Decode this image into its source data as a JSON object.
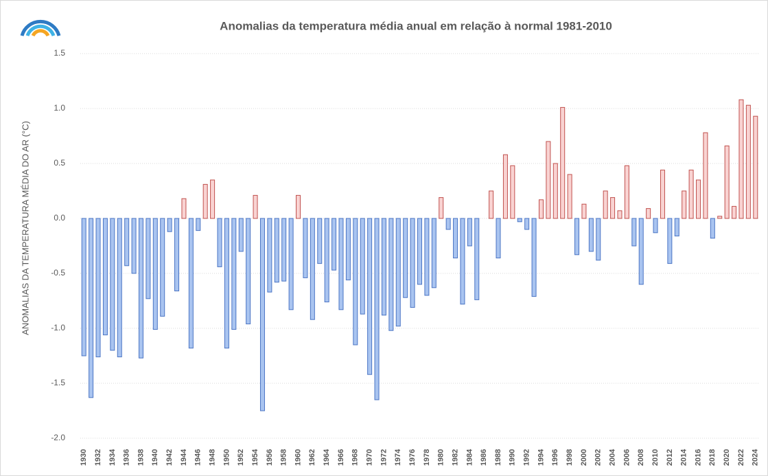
{
  "chart_data": {
    "type": "bar",
    "title": "Anomalias  da temperatura  média anual  em relação à normal  1981-2010",
    "y_label": "ANOMALIAS DA TEMPERATURA MÉDIA DO AR (°C)",
    "categories": [
      "1930",
      null,
      "1932",
      null,
      "1934",
      null,
      "1936",
      null,
      "1938",
      null,
      "1940",
      null,
      "1942",
      null,
      "1944",
      null,
      "1946",
      null,
      "1948",
      null,
      "1950",
      null,
      "1952",
      null,
      "1954",
      null,
      "1956",
      null,
      "1958",
      null,
      "1960",
      null,
      "1962",
      null,
      "1964",
      null,
      "1966",
      null,
      "1968",
      null,
      "1970",
      null,
      "1972",
      null,
      "1974",
      null,
      "1976",
      null,
      "1978",
      null,
      "1980",
      null,
      "1982",
      null,
      "1984",
      null,
      "1986",
      null,
      "1988",
      null,
      "1990",
      null,
      "1992",
      null,
      "1994",
      null,
      "1996",
      null,
      "1998",
      null,
      "2000",
      null,
      "2002",
      null,
      "2004",
      null,
      "2006",
      null,
      "2008",
      null,
      "2010",
      null,
      "2012",
      null,
      "2014",
      null,
      "2016",
      null,
      "2018",
      null,
      "2020",
      null,
      "2022",
      null,
      "2024"
    ],
    "values": [
      -1.25,
      -1.63,
      -1.26,
      -1.06,
      -1.2,
      -1.26,
      -0.43,
      -0.5,
      -1.27,
      -0.73,
      -1.01,
      -0.89,
      -0.12,
      -0.66,
      0.18,
      -1.18,
      -0.11,
      0.31,
      0.35,
      -0.44,
      -1.18,
      -1.01,
      -0.3,
      -0.96,
      0.21,
      -1.75,
      -0.67,
      -0.58,
      -0.57,
      -0.83,
      0.21,
      -0.54,
      -0.92,
      -0.41,
      -0.76,
      -0.47,
      -0.83,
      -0.56,
      -1.15,
      -0.87,
      -1.42,
      -1.65,
      -0.88,
      -1.02,
      -0.98,
      -0.72,
      -0.81,
      -0.6,
      -0.7,
      -0.63,
      0.19,
      -0.1,
      -0.36,
      -0.78,
      -0.25,
      -0.74,
      0,
      0.25,
      -0.36,
      0.58,
      0.48,
      -0.03,
      -0.1,
      -0.71,
      0.17,
      0.7,
      0.5,
      1.01,
      0.4,
      -0.33,
      0.13,
      -0.3,
      -0.38,
      0.25,
      0.19,
      0.07,
      0.48,
      -0.25,
      -0.6,
      0.09,
      -0.13,
      0.44,
      -0.41,
      -0.16,
      0.25,
      0.44,
      0.35,
      0.78,
      -0.18,
      0.02,
      0.66,
      0.11,
      1.08,
      1.03,
      0.93
    ],
    "positive_color": "#c0504d",
    "negative_color": "#4a74c4",
    "ylim": [
      -2.0,
      1.5
    ],
    "yticks": [
      {
        "value": -2.0,
        "label": "-2.0"
      },
      -1.5,
      {
        "value": -1.0,
        "label": "-1.0"
      },
      -0.5,
      {
        "value": 0,
        "label": "0.0"
      },
      0.5,
      {
        "value": 1.0,
        "label": "1.0"
      },
      1.5
    ],
    "grid": true
  }
}
